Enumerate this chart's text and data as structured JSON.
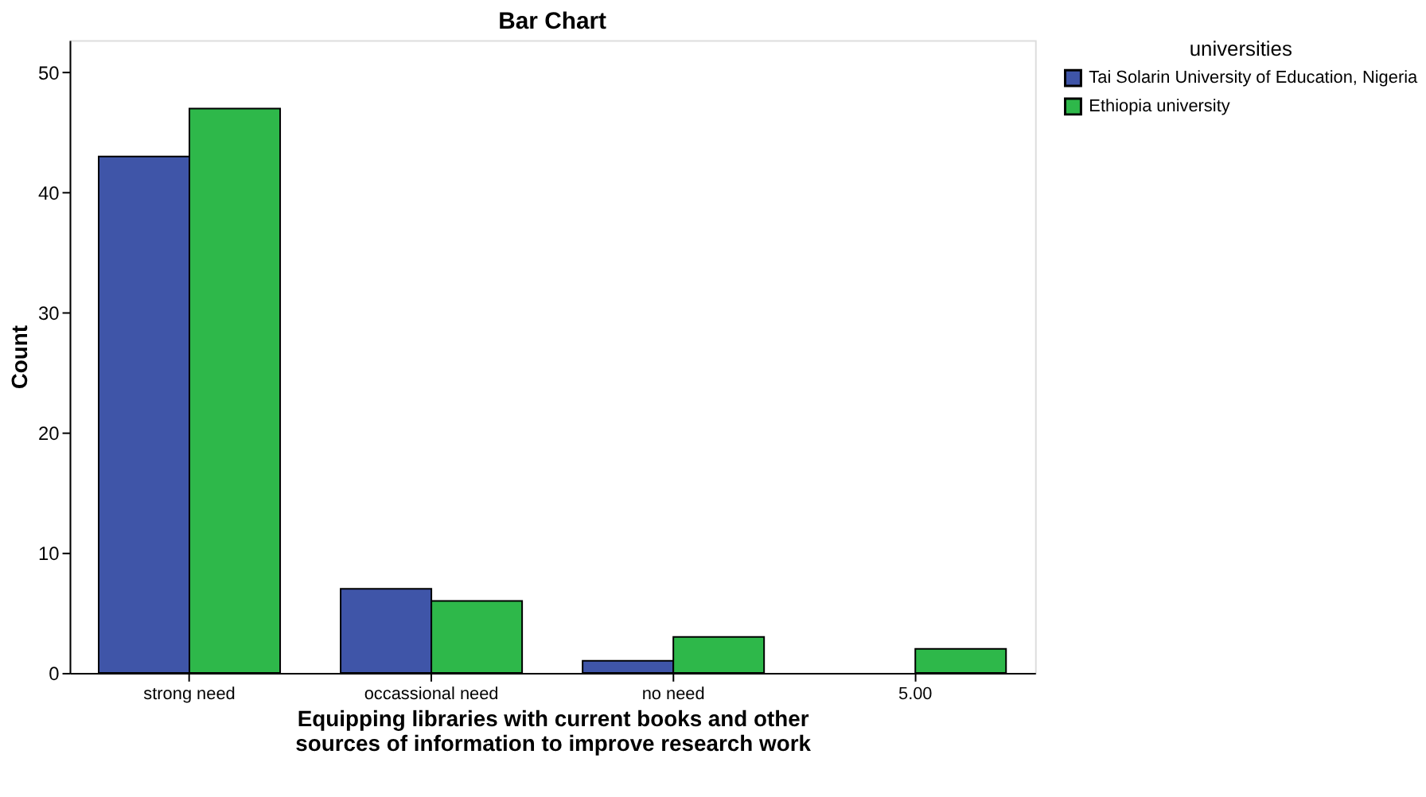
{
  "chart_data": {
    "type": "bar",
    "title": "Bar Chart",
    "xlabel": "Equipping libraries with current books and other sources of information to improve research work",
    "ylabel": "Count",
    "legend_title": "universities",
    "categories": [
      "strong need",
      "occassional need",
      "no need",
      "5.00"
    ],
    "series": [
      {
        "name": "Tai Solarin University of Education, Nigeria",
        "color": "#3f55a8",
        "values": [
          43,
          7,
          1,
          null
        ]
      },
      {
        "name": "Ethiopia university",
        "color": "#2eb84a",
        "values": [
          47,
          6,
          3,
          2
        ]
      }
    ],
    "ylim": [
      0,
      52.7
    ],
    "yticks": [
      0,
      10,
      20,
      30,
      40,
      50
    ],
    "grid": false,
    "legend": "top right"
  }
}
